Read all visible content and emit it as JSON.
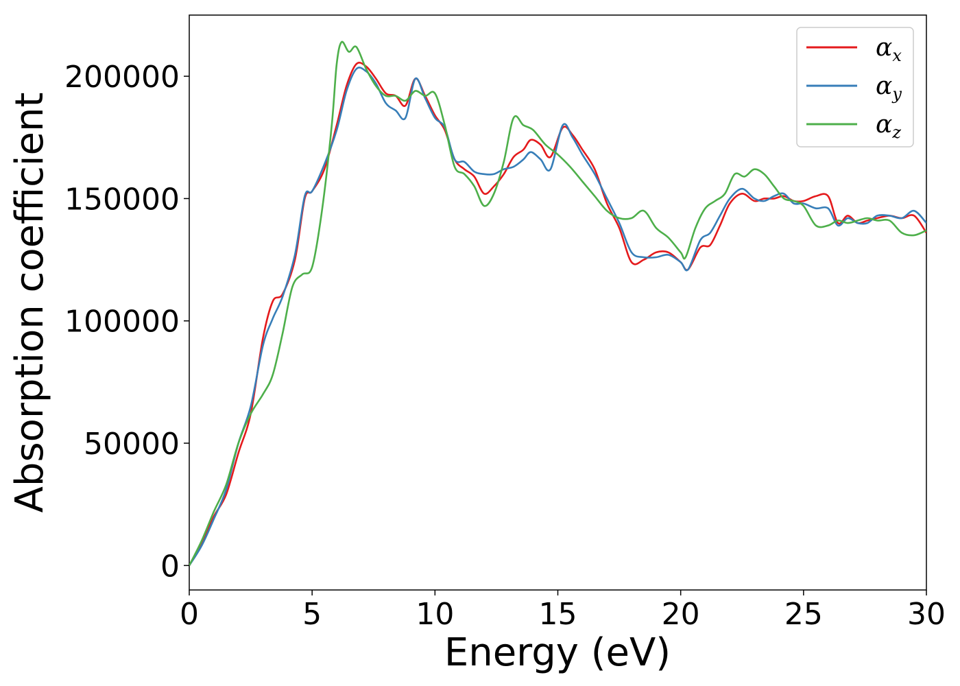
{
  "chart_data": {
    "type": "line",
    "title": "",
    "xlabel": "Energy (eV)",
    "ylabel": "Absorption coefficient",
    "xlim": [
      0,
      30
    ],
    "ylim": [
      -10000,
      225000
    ],
    "xticks": [
      0,
      5,
      10,
      15,
      20,
      25,
      30
    ],
    "yticks": [
      0,
      50000,
      100000,
      150000,
      200000
    ],
    "xtick_labels": [
      "0",
      "5",
      "10",
      "15",
      "20",
      "25",
      "30"
    ],
    "ytick_labels": [
      "0",
      "50000",
      "100000",
      "150000",
      "200000"
    ],
    "grid": false,
    "legend_position": "top-right",
    "series": [
      {
        "name": "αx",
        "symbol": "α",
        "subscript": "x",
        "color": "#e41a1c",
        "points": [
          [
            0,
            0
          ],
          [
            0.5,
            9000
          ],
          [
            1.0,
            20000
          ],
          [
            1.5,
            29000
          ],
          [
            2.0,
            46000
          ],
          [
            2.5,
            62000
          ],
          [
            3.0,
            93000
          ],
          [
            3.4,
            108000
          ],
          [
            3.8,
            111000
          ],
          [
            4.3,
            125000
          ],
          [
            4.7,
            150000
          ],
          [
            5.0,
            153000
          ],
          [
            5.5,
            162000
          ],
          [
            6.0,
            180000
          ],
          [
            6.4,
            196000
          ],
          [
            6.8,
            205000
          ],
          [
            7.2,
            204000
          ],
          [
            7.6,
            199000
          ],
          [
            8.0,
            193000
          ],
          [
            8.4,
            192000
          ],
          [
            8.8,
            188000
          ],
          [
            9.2,
            199000
          ],
          [
            9.6,
            192000
          ],
          [
            10.0,
            184000
          ],
          [
            10.4,
            178000
          ],
          [
            10.8,
            166000
          ],
          [
            11.2,
            162000
          ],
          [
            11.6,
            159000
          ],
          [
            12.0,
            152000
          ],
          [
            12.4,
            155000
          ],
          [
            12.8,
            160000
          ],
          [
            13.2,
            167000
          ],
          [
            13.6,
            170000
          ],
          [
            13.9,
            174000
          ],
          [
            14.3,
            172000
          ],
          [
            14.7,
            167000
          ],
          [
            15.2,
            179000
          ],
          [
            15.6,
            176000
          ],
          [
            16.0,
            170000
          ],
          [
            16.5,
            162000
          ],
          [
            17.0,
            148000
          ],
          [
            17.5,
            138000
          ],
          [
            18.0,
            124000
          ],
          [
            18.5,
            125000
          ],
          [
            19.0,
            128000
          ],
          [
            19.5,
            128000
          ],
          [
            20.0,
            124000
          ],
          [
            20.3,
            121000
          ],
          [
            20.8,
            130000
          ],
          [
            21.2,
            131000
          ],
          [
            21.6,
            139000
          ],
          [
            22.0,
            148000
          ],
          [
            22.5,
            152000
          ],
          [
            23.0,
            149000
          ],
          [
            23.4,
            150000
          ],
          [
            23.8,
            150000
          ],
          [
            24.2,
            151000
          ],
          [
            24.6,
            149000
          ],
          [
            25.0,
            149000
          ],
          [
            25.5,
            151000
          ],
          [
            26.0,
            151000
          ],
          [
            26.4,
            140000
          ],
          [
            26.8,
            143000
          ],
          [
            27.2,
            140000
          ],
          [
            27.6,
            141000
          ],
          [
            28.0,
            142000
          ],
          [
            28.5,
            143000
          ],
          [
            29.0,
            142000
          ],
          [
            29.5,
            143000
          ],
          [
            30.0,
            136000
          ]
        ]
      },
      {
        "name": "αy",
        "symbol": "α",
        "subscript": "y",
        "color": "#377eb8",
        "points": [
          [
            0,
            0
          ],
          [
            0.5,
            8000
          ],
          [
            1.0,
            19000
          ],
          [
            1.5,
            31000
          ],
          [
            2.0,
            50000
          ],
          [
            2.5,
            65000
          ],
          [
            3.0,
            90000
          ],
          [
            3.4,
            101000
          ],
          [
            3.8,
            110000
          ],
          [
            4.3,
            127000
          ],
          [
            4.7,
            151000
          ],
          [
            5.0,
            153000
          ],
          [
            5.5,
            164000
          ],
          [
            6.0,
            178000
          ],
          [
            6.4,
            194000
          ],
          [
            6.8,
            203000
          ],
          [
            7.2,
            202000
          ],
          [
            7.6,
            197000
          ],
          [
            8.0,
            189000
          ],
          [
            8.4,
            186000
          ],
          [
            8.8,
            183000
          ],
          [
            9.2,
            199000
          ],
          [
            9.6,
            191000
          ],
          [
            10.0,
            183000
          ],
          [
            10.4,
            179000
          ],
          [
            10.8,
            166000
          ],
          [
            11.2,
            165000
          ],
          [
            11.6,
            161000
          ],
          [
            12.0,
            160000
          ],
          [
            12.4,
            160000
          ],
          [
            12.8,
            162000
          ],
          [
            13.2,
            163000
          ],
          [
            13.6,
            166000
          ],
          [
            13.9,
            169000
          ],
          [
            14.3,
            166000
          ],
          [
            14.7,
            162000
          ],
          [
            15.2,
            180000
          ],
          [
            15.6,
            175000
          ],
          [
            16.0,
            168000
          ],
          [
            16.5,
            160000
          ],
          [
            17.0,
            150000
          ],
          [
            17.5,
            140000
          ],
          [
            18.0,
            128000
          ],
          [
            18.5,
            126000
          ],
          [
            19.0,
            126000
          ],
          [
            19.5,
            127000
          ],
          [
            20.0,
            124000
          ],
          [
            20.3,
            121000
          ],
          [
            20.8,
            133000
          ],
          [
            21.2,
            136000
          ],
          [
            21.6,
            143000
          ],
          [
            22.0,
            150000
          ],
          [
            22.5,
            154000
          ],
          [
            23.0,
            150000
          ],
          [
            23.4,
            149000
          ],
          [
            23.8,
            151000
          ],
          [
            24.2,
            152000
          ],
          [
            24.6,
            148000
          ],
          [
            25.0,
            148000
          ],
          [
            25.5,
            146000
          ],
          [
            26.0,
            146000
          ],
          [
            26.4,
            139000
          ],
          [
            26.8,
            142000
          ],
          [
            27.2,
            140000
          ],
          [
            27.6,
            140000
          ],
          [
            28.0,
            143000
          ],
          [
            28.5,
            143000
          ],
          [
            29.0,
            142000
          ],
          [
            29.5,
            145000
          ],
          [
            30.0,
            140000
          ]
        ]
      },
      {
        "name": "αz",
        "symbol": "α",
        "subscript": "z",
        "color": "#4daf4a",
        "points": [
          [
            0,
            0
          ],
          [
            0.5,
            10000
          ],
          [
            1.0,
            22000
          ],
          [
            1.5,
            33000
          ],
          [
            2.0,
            50000
          ],
          [
            2.5,
            62000
          ],
          [
            3.0,
            70000
          ],
          [
            3.4,
            78000
          ],
          [
            3.8,
            95000
          ],
          [
            4.2,
            114000
          ],
          [
            4.6,
            119000
          ],
          [
            5.0,
            122000
          ],
          [
            5.4,
            145000
          ],
          [
            5.8,
            180000
          ],
          [
            6.0,
            205000
          ],
          [
            6.2,
            214000
          ],
          [
            6.5,
            210000
          ],
          [
            6.8,
            212000
          ],
          [
            7.2,
            203000
          ],
          [
            7.6,
            196000
          ],
          [
            8.0,
            192000
          ],
          [
            8.4,
            192000
          ],
          [
            8.8,
            190000
          ],
          [
            9.2,
            194000
          ],
          [
            9.6,
            192000
          ],
          [
            10.0,
            193000
          ],
          [
            10.4,
            180000
          ],
          [
            10.8,
            163000
          ],
          [
            11.2,
            160000
          ],
          [
            11.6,
            155000
          ],
          [
            12.0,
            147000
          ],
          [
            12.4,
            152000
          ],
          [
            12.8,
            165000
          ],
          [
            13.2,
            183000
          ],
          [
            13.6,
            180000
          ],
          [
            14.0,
            178000
          ],
          [
            14.5,
            172000
          ],
          [
            15.0,
            168000
          ],
          [
            15.5,
            163000
          ],
          [
            16.0,
            157000
          ],
          [
            16.5,
            151000
          ],
          [
            17.0,
            145000
          ],
          [
            17.5,
            142000
          ],
          [
            18.0,
            142000
          ],
          [
            18.5,
            145000
          ],
          [
            19.0,
            138000
          ],
          [
            19.5,
            134000
          ],
          [
            20.0,
            128000
          ],
          [
            20.2,
            126000
          ],
          [
            20.6,
            138000
          ],
          [
            21.0,
            146000
          ],
          [
            21.4,
            149000
          ],
          [
            21.8,
            152000
          ],
          [
            22.2,
            160000
          ],
          [
            22.6,
            159000
          ],
          [
            23.0,
            162000
          ],
          [
            23.4,
            160000
          ],
          [
            23.8,
            155000
          ],
          [
            24.2,
            150000
          ],
          [
            24.6,
            149000
          ],
          [
            25.0,
            147000
          ],
          [
            25.5,
            139000
          ],
          [
            26.0,
            139000
          ],
          [
            26.4,
            141000
          ],
          [
            26.8,
            140000
          ],
          [
            27.2,
            141000
          ],
          [
            27.6,
            142000
          ],
          [
            28.0,
            141000
          ],
          [
            28.5,
            141000
          ],
          [
            29.0,
            136000
          ],
          [
            29.5,
            135000
          ],
          [
            30.0,
            137000
          ]
        ]
      }
    ]
  }
}
